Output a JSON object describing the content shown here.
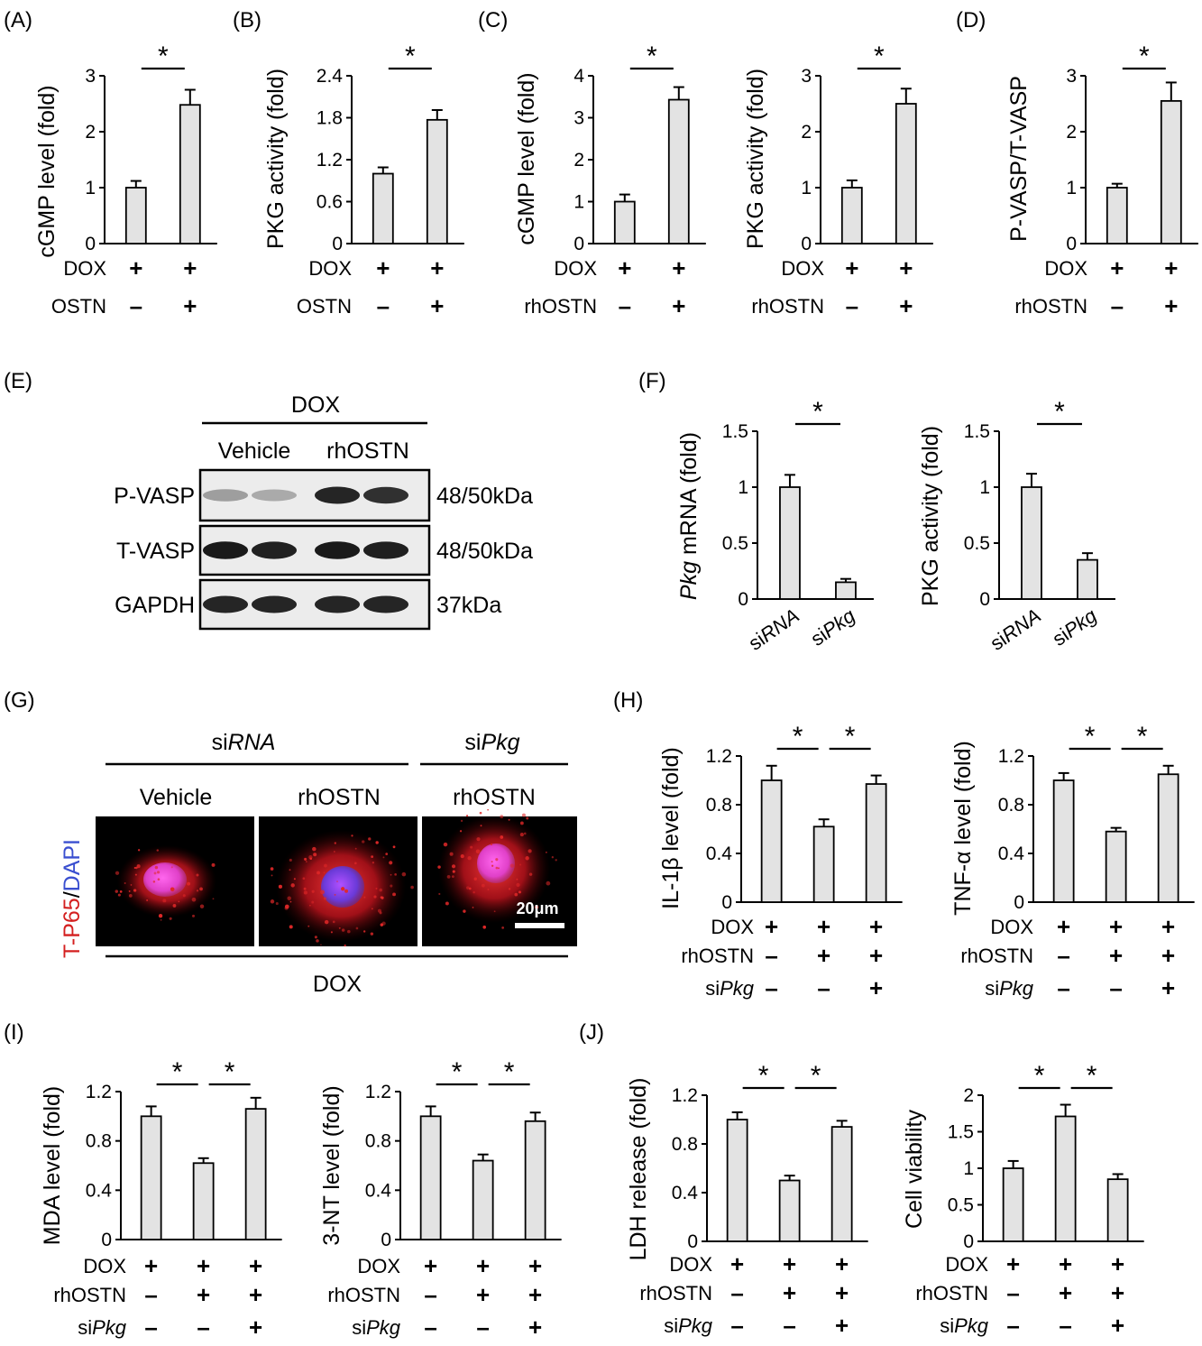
{
  "panels": {
    "A": "(A)",
    "B": "(B)",
    "C": "(C)",
    "D": "(D)",
    "E": "(E)",
    "F": "(F)",
    "G": "(G)",
    "H": "(H)",
    "I": "(I)",
    "J": "(J)"
  },
  "colors": {
    "bar_fill": "#e3e3e3",
    "stroke": "#000000"
  },
  "chart_data": [
    {
      "id": "A",
      "type": "bar",
      "ylabel": "cGMP level (fold)",
      "ylim": [
        0,
        3
      ],
      "yticks": [
        "0",
        "1",
        "2",
        "3"
      ],
      "values": [
        1.0,
        2.48
      ],
      "errors": [
        0.12,
        0.27
      ],
      "rows": [
        {
          "label": "DOX",
          "signs": [
            "+",
            "+"
          ]
        },
        {
          "label": "OSTN",
          "signs": [
            "-",
            "+"
          ]
        }
      ],
      "sig": [
        {
          "from": 0,
          "to": 1,
          "mark": "*"
        }
      ]
    },
    {
      "id": "B",
      "type": "bar",
      "ylabel": "PKG activity (fold)",
      "ylim": [
        0,
        2.4
      ],
      "yticks": [
        "0",
        "0.6",
        "1.2",
        "1.8",
        "2.4"
      ],
      "values": [
        1.0,
        1.77
      ],
      "errors": [
        0.09,
        0.14
      ],
      "rows": [
        {
          "label": "DOX",
          "signs": [
            "+",
            "+"
          ]
        },
        {
          "label": "OSTN",
          "signs": [
            "-",
            "+"
          ]
        }
      ],
      "sig": [
        {
          "from": 0,
          "to": 1,
          "mark": "*"
        }
      ]
    },
    {
      "id": "C1",
      "type": "bar",
      "ylabel": "cGMP level (fold)",
      "ylim": [
        0,
        4
      ],
      "yticks": [
        "0",
        "1",
        "2",
        "3",
        "4"
      ],
      "values": [
        1.0,
        3.43
      ],
      "errors": [
        0.17,
        0.3
      ],
      "rows": [
        {
          "label": "DOX",
          "signs": [
            "+",
            "+"
          ]
        },
        {
          "label": "rhOSTN",
          "signs": [
            "-",
            "+"
          ]
        }
      ],
      "sig": [
        {
          "from": 0,
          "to": 1,
          "mark": "*"
        }
      ]
    },
    {
      "id": "C2",
      "type": "bar",
      "ylabel": "PKG activity (fold)",
      "ylim": [
        0,
        3
      ],
      "yticks": [
        "0",
        "1",
        "2",
        "3"
      ],
      "values": [
        1.0,
        2.5
      ],
      "errors": [
        0.13,
        0.27
      ],
      "rows": [
        {
          "label": "DOX",
          "signs": [
            "+",
            "+"
          ]
        },
        {
          "label": "rhOSTN",
          "signs": [
            "-",
            "+"
          ]
        }
      ],
      "sig": [
        {
          "from": 0,
          "to": 1,
          "mark": "*"
        }
      ]
    },
    {
      "id": "D",
      "type": "bar",
      "ylabel": "P-VASP/T-VASP",
      "ylim": [
        0,
        3
      ],
      "yticks": [
        "0",
        "1",
        "2",
        "3"
      ],
      "values": [
        1.0,
        2.55
      ],
      "errors": [
        0.07,
        0.33
      ],
      "rows": [
        {
          "label": "DOX",
          "signs": [
            "+",
            "+"
          ]
        },
        {
          "label": "rhOSTN",
          "signs": [
            "-",
            "+"
          ]
        }
      ],
      "sig": [
        {
          "from": 0,
          "to": 1,
          "mark": "*"
        }
      ]
    },
    {
      "id": "F1",
      "type": "bar",
      "ylabel_italic": "Pkg",
      "ylabel": " mRNA (fold)",
      "ylim": [
        0,
        1.5
      ],
      "yticks": [
        "0",
        "0.5",
        "1",
        "1.5"
      ],
      "values": [
        1.0,
        0.15
      ],
      "errors": [
        0.11,
        0.03
      ],
      "categories": [
        {
          "pre": "si",
          "it": "RNA"
        },
        {
          "pre": "si",
          "it": "Pkg"
        }
      ],
      "sig": [
        {
          "from": 0,
          "to": 1,
          "mark": "*"
        }
      ]
    },
    {
      "id": "F2",
      "type": "bar",
      "ylabel": "PKG activity (fold)",
      "ylim": [
        0,
        1.5
      ],
      "yticks": [
        "0",
        "0.5",
        "1",
        "1.5"
      ],
      "values": [
        1.0,
        0.35
      ],
      "errors": [
        0.12,
        0.06
      ],
      "categories": [
        {
          "pre": "si",
          "it": "RNA"
        },
        {
          "pre": "si",
          "it": "Pkg"
        }
      ],
      "sig": [
        {
          "from": 0,
          "to": 1,
          "mark": "*"
        }
      ]
    },
    {
      "id": "H1",
      "type": "bar",
      "ylabel": "IL-1β level (fold)",
      "ylim": [
        0,
        1.2
      ],
      "yticks": [
        "0",
        "0.4",
        "0.8",
        "1.2"
      ],
      "values": [
        1.0,
        0.62,
        0.97
      ],
      "errors": [
        0.12,
        0.06,
        0.07
      ],
      "rows": [
        {
          "label": "DOX",
          "signs": [
            "+",
            "+",
            "+"
          ]
        },
        {
          "label": "rhOSTN",
          "signs": [
            "-",
            "+",
            "+"
          ]
        },
        {
          "label": "si",
          "label_it": "Pkg",
          "signs": [
            "-",
            "-",
            "+"
          ]
        }
      ],
      "sig": [
        {
          "from": 0,
          "to": 1,
          "mark": "*"
        },
        {
          "from": 1,
          "to": 2,
          "mark": "*"
        }
      ]
    },
    {
      "id": "H2",
      "type": "bar",
      "ylabel": "TNF-α level (fold)",
      "ylim": [
        0,
        1.2
      ],
      "yticks": [
        "0",
        "0.4",
        "0.8",
        "1.2"
      ],
      "values": [
        1.0,
        0.58,
        1.05
      ],
      "errors": [
        0.06,
        0.03,
        0.07
      ],
      "rows": [
        {
          "label": "DOX",
          "signs": [
            "+",
            "+",
            "+"
          ]
        },
        {
          "label": "rhOSTN",
          "signs": [
            "-",
            "+",
            "+"
          ]
        },
        {
          "label": "si",
          "label_it": "Pkg",
          "signs": [
            "-",
            "-",
            "+"
          ]
        }
      ],
      "sig": [
        {
          "from": 0,
          "to": 1,
          "mark": "*"
        },
        {
          "from": 1,
          "to": 2,
          "mark": "*"
        }
      ]
    },
    {
      "id": "I1",
      "type": "bar",
      "ylabel": "MDA level (fold)",
      "ylim": [
        0,
        1.2
      ],
      "yticks": [
        "0",
        "0.4",
        "0.8",
        "1.2"
      ],
      "values": [
        1.0,
        0.62,
        1.06
      ],
      "errors": [
        0.08,
        0.04,
        0.09
      ],
      "rows": [
        {
          "label": "DOX",
          "signs": [
            "+",
            "+",
            "+"
          ]
        },
        {
          "label": "rhOSTN",
          "signs": [
            "-",
            "+",
            "+"
          ]
        },
        {
          "label": "si",
          "label_it": "Pkg",
          "signs": [
            "-",
            "-",
            "+"
          ]
        }
      ],
      "sig": [
        {
          "from": 0,
          "to": 1,
          "mark": "*"
        },
        {
          "from": 1,
          "to": 2,
          "mark": "*"
        }
      ]
    },
    {
      "id": "I2",
      "type": "bar",
      "ylabel": "3-NT level (fold)",
      "ylim": [
        0,
        1.2
      ],
      "yticks": [
        "0",
        "0.4",
        "0.8",
        "1.2"
      ],
      "values": [
        1.0,
        0.64,
        0.96
      ],
      "errors": [
        0.08,
        0.05,
        0.07
      ],
      "rows": [
        {
          "label": "DOX",
          "signs": [
            "+",
            "+",
            "+"
          ]
        },
        {
          "label": "rhOSTN",
          "signs": [
            "-",
            "+",
            "+"
          ]
        },
        {
          "label": "si",
          "label_it": "Pkg",
          "signs": [
            "-",
            "-",
            "+"
          ]
        }
      ],
      "sig": [
        {
          "from": 0,
          "to": 1,
          "mark": "*"
        },
        {
          "from": 1,
          "to": 2,
          "mark": "*"
        }
      ]
    },
    {
      "id": "J1",
      "type": "bar",
      "ylabel": "LDH release (fold)",
      "ylim": [
        0,
        1.2
      ],
      "yticks": [
        "0",
        "0.4",
        "0.8",
        "1.2"
      ],
      "values": [
        1.0,
        0.5,
        0.94
      ],
      "errors": [
        0.06,
        0.04,
        0.05
      ],
      "rows": [
        {
          "label": "DOX",
          "signs": [
            "+",
            "+",
            "+"
          ]
        },
        {
          "label": "rhOSTN",
          "signs": [
            "-",
            "+",
            "+"
          ]
        },
        {
          "label": "si",
          "label_it": "Pkg",
          "signs": [
            "-",
            "-",
            "+"
          ]
        }
      ],
      "sig": [
        {
          "from": 0,
          "to": 1,
          "mark": "*"
        },
        {
          "from": 1,
          "to": 2,
          "mark": "*"
        }
      ]
    },
    {
      "id": "J2",
      "type": "bar",
      "ylabel": "Cell viability",
      "ylim": [
        0,
        2
      ],
      "yticks": [
        "0",
        "0.5",
        "1",
        "1.5",
        "2"
      ],
      "values": [
        1.0,
        1.71,
        0.85
      ],
      "errors": [
        0.1,
        0.16,
        0.07
      ],
      "rows": [
        {
          "label": "DOX",
          "signs": [
            "+",
            "+",
            "+"
          ]
        },
        {
          "label": "rhOSTN",
          "signs": [
            "-",
            "+",
            "+"
          ]
        },
        {
          "label": "si",
          "label_it": "Pkg",
          "signs": [
            "-",
            "-",
            "+"
          ]
        }
      ],
      "sig": [
        {
          "from": 0,
          "to": 1,
          "mark": "*"
        },
        {
          "from": 1,
          "to": 2,
          "mark": "*"
        }
      ]
    }
  ],
  "blot": {
    "header": "DOX",
    "groups": [
      "Vehicle",
      "rhOSTN"
    ],
    "bands": [
      {
        "name": "P-VASP",
        "size": "48/50kDa",
        "intensity": [
          0.35,
          0.3,
          0.9,
          0.85
        ]
      },
      {
        "name": "T-VASP",
        "size": "48/50kDa",
        "intensity": [
          0.95,
          0.92,
          0.95,
          0.93
        ]
      },
      {
        "name": "GAPDH",
        "size": "37kDa",
        "intensity": [
          0.9,
          0.9,
          0.9,
          0.9
        ]
      }
    ]
  },
  "micro": {
    "group1_pre": "si",
    "group1_it": "RNA",
    "group2_pre": "si",
    "group2_it": "Pkg",
    "cols": [
      "Vehicle",
      "rhOSTN",
      "rhOSTN"
    ],
    "side_red": "T-P65",
    "side_sep": "/",
    "side_blue": "DAPI",
    "scale": "20μm",
    "bottom": "DOX"
  }
}
